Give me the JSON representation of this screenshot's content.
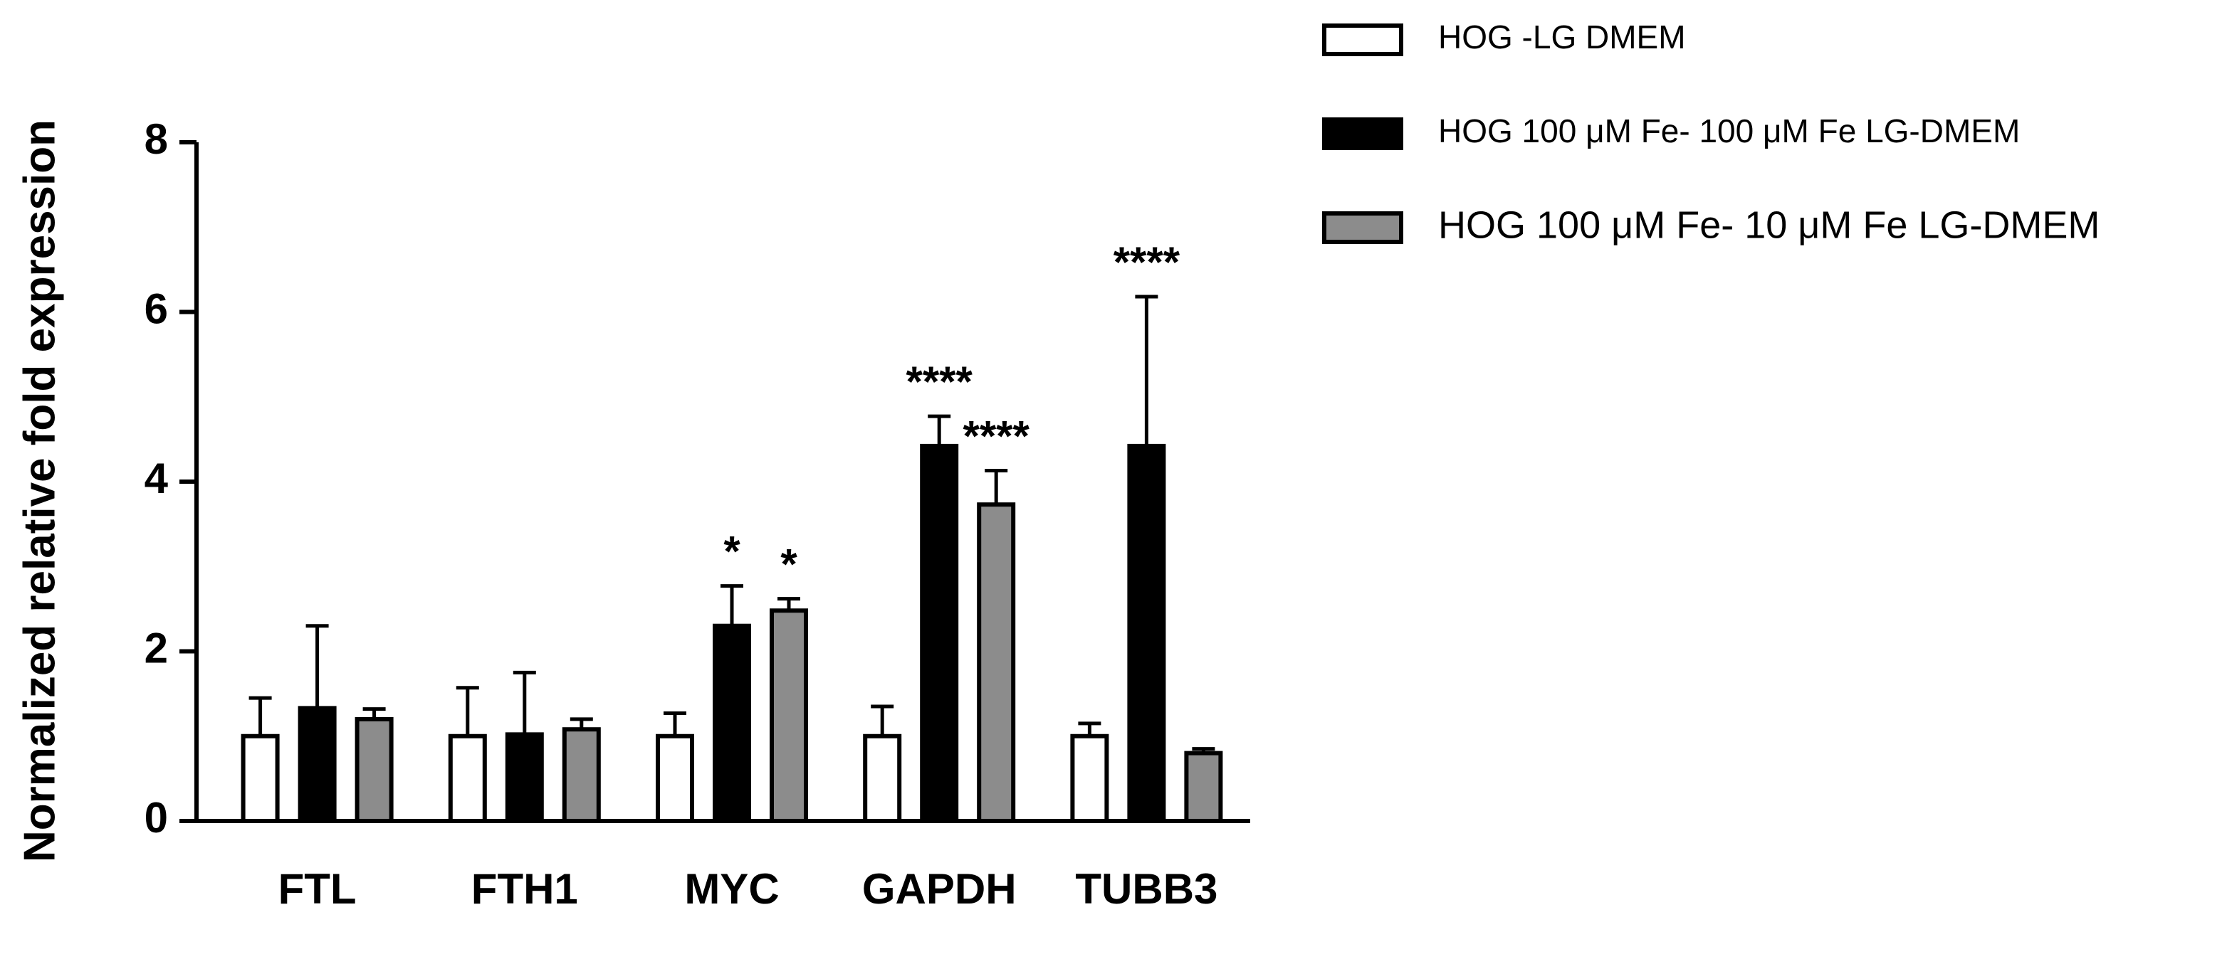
{
  "chart_data": {
    "type": "bar",
    "y_label": "Normalized relative fold expression",
    "categories": [
      "FTL",
      "FTH1",
      "MYC",
      "GAPDH",
      "TUBB3"
    ],
    "series": [
      {
        "name": "HOG -LG DMEM",
        "color": "#ffffff",
        "values": [
          1.0,
          1.0,
          1.0,
          1.0,
          1.0
        ],
        "errors": [
          0.45,
          0.57,
          0.27,
          0.35,
          0.15
        ]
      },
      {
        "name": "HOG 100 μM Fe- 100 μM Fe LG-DMEM",
        "color": "#000000",
        "values": [
          1.33,
          1.02,
          2.3,
          4.42,
          4.42
        ],
        "errors": [
          0.97,
          0.73,
          0.47,
          0.35,
          1.76
        ]
      },
      {
        "name": "HOG 100 μM Fe- 10 μM Fe LG-DMEM",
        "color": "#8c8c8c",
        "values": [
          1.2,
          1.08,
          2.48,
          3.73,
          0.8
        ],
        "errors": [
          0.12,
          0.12,
          0.14,
          0.4,
          0.05
        ]
      }
    ],
    "annotations": [
      {
        "series": 1,
        "category": 2,
        "text": "*"
      },
      {
        "series": 2,
        "category": 2,
        "text": "*"
      },
      {
        "series": 1,
        "category": 3,
        "text": "****"
      },
      {
        "series": 2,
        "category": 3,
        "text": "****"
      },
      {
        "series": 1,
        "category": 4,
        "text": "****"
      }
    ],
    "ylim": [
      0,
      8
    ],
    "yticks": [
      0,
      2,
      4,
      6,
      8
    ],
    "grid": false,
    "legend": "top-right"
  }
}
